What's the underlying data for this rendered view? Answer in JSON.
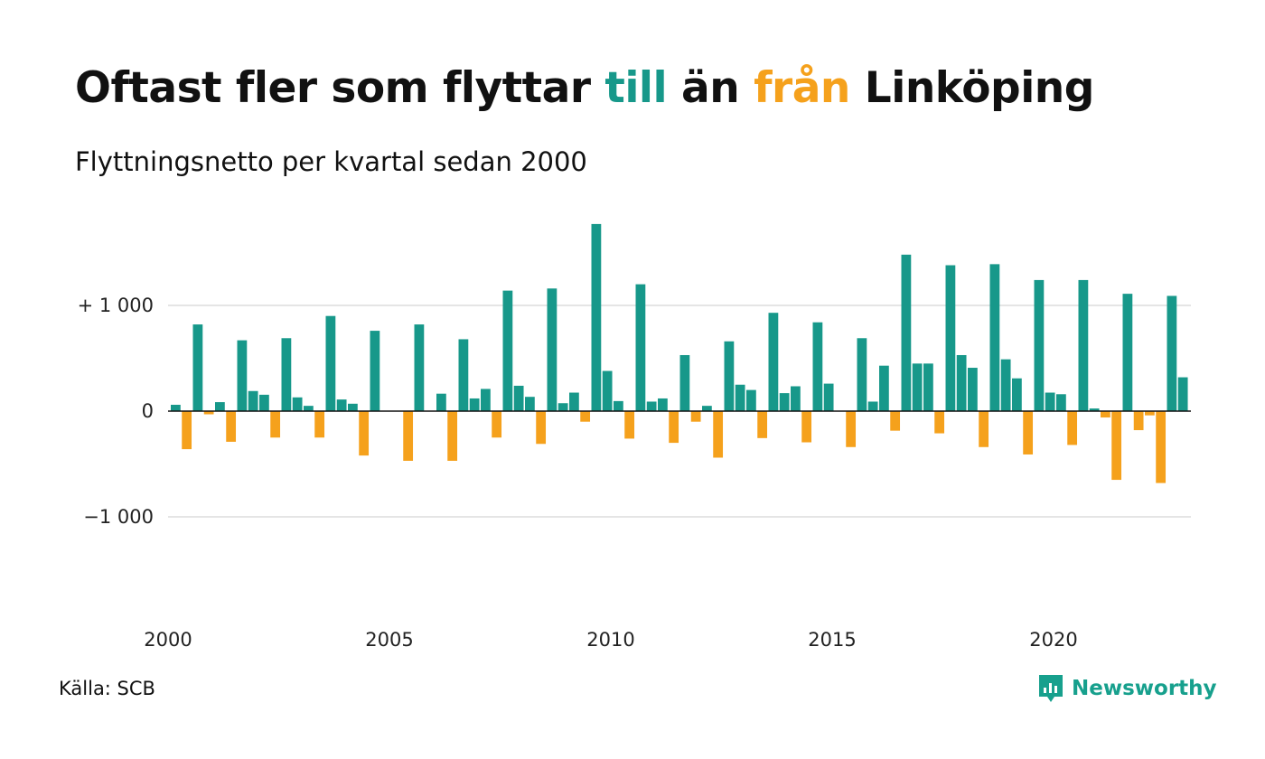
{
  "title": {
    "part1": "Oftast fler som flyttar ",
    "word_to": "till",
    "part2": " än ",
    "word_from": "från",
    "part3": " Linköping"
  },
  "subtitle": "Flyttningsnetto per kvartal sedan 2000",
  "source": "Källa: SCB",
  "brand": "Newsworthy",
  "colors": {
    "positive": "#17988a",
    "negative": "#f5a11c",
    "grid": "#e5e5e5",
    "brand": "#17a08d"
  },
  "chart_data": {
    "type": "bar",
    "title": "Oftast fler som flyttar till än från Linköping",
    "subtitle": "Flyttningsnetto per kvartal sedan 2000",
    "x_start": 2000,
    "periods_per_year": 4,
    "ylim": [
      -1500,
      1900
    ],
    "y_ticks": [
      {
        "value": 1000,
        "label": "+ 1 000"
      },
      {
        "value": 0,
        "label": "0"
      },
      {
        "value": -1000,
        "label": "−1 000"
      }
    ],
    "x_ticks": [
      {
        "value": 2000,
        "label": "2000"
      },
      {
        "value": 2005,
        "label": "2005"
      },
      {
        "value": 2010,
        "label": "2010"
      },
      {
        "value": 2015,
        "label": "2015"
      },
      {
        "value": 2020,
        "label": "2020"
      }
    ],
    "values": [
      60,
      -360,
      820,
      -30,
      85,
      -290,
      670,
      190,
      155,
      -250,
      690,
      130,
      50,
      -250,
      900,
      110,
      70,
      -420,
      760,
      0,
      0,
      -470,
      820,
      0,
      165,
      -470,
      680,
      120,
      210,
      -250,
      1140,
      240,
      135,
      -310,
      1160,
      75,
      175,
      -100,
      1770,
      380,
      95,
      -260,
      1200,
      90,
      120,
      -300,
      530,
      -100,
      50,
      -440,
      660,
      250,
      200,
      -255,
      930,
      170,
      235,
      -295,
      840,
      260,
      0,
      -340,
      690,
      90,
      430,
      -185,
      1480,
      450,
      450,
      -210,
      1380,
      530,
      410,
      -340,
      1390,
      490,
      310,
      -410,
      1240,
      175,
      160,
      -320,
      1240,
      25,
      -60,
      -650,
      1110,
      -180,
      -40,
      -680,
      1090,
      320
    ]
  }
}
